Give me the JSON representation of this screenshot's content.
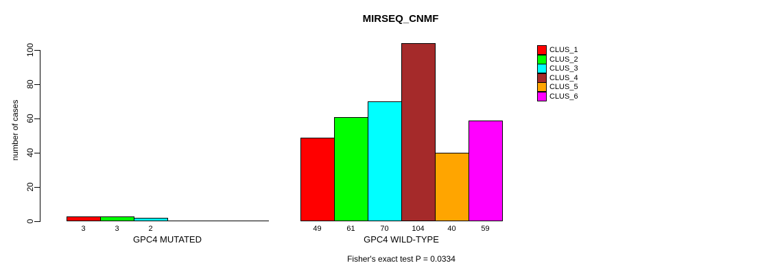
{
  "title": "MIRSEQ_CNMF",
  "footer": "Fisher's exact test P = 0.0334",
  "y_axis": {
    "label": "number of cases"
  },
  "legend": {
    "items": [
      {
        "label": "CLUS_1",
        "color": "#ff0000"
      },
      {
        "label": "CLUS_2",
        "color": "#00ff00"
      },
      {
        "label": "CLUS_3",
        "color": "#00ffff"
      },
      {
        "label": "CLUS_4",
        "color": "#a52a2a"
      },
      {
        "label": "CLUS_5",
        "color": "#ffa500"
      },
      {
        "label": "CLUS_6",
        "color": "#ff00ff"
      }
    ]
  },
  "chart_data": {
    "type": "bar",
    "title": "MIRSEQ_CNMF",
    "ylabel": "number of cases",
    "ylim": [
      0,
      104
    ],
    "yticks": [
      0,
      20,
      40,
      60,
      80,
      100
    ],
    "grid": false,
    "legend_position": "right",
    "series_names": [
      "CLUS_1",
      "CLUS_2",
      "CLUS_3",
      "CLUS_4",
      "CLUS_5",
      "CLUS_6"
    ],
    "series_colors": [
      "#ff0000",
      "#00ff00",
      "#00ffff",
      "#a52a2a",
      "#ffa500",
      "#ff00ff"
    ],
    "groups": [
      {
        "label": "GPC4 MUTATED",
        "values": [
          3,
          3,
          2,
          0,
          0,
          0
        ],
        "value_labels": [
          "3",
          "3",
          "2",
          "",
          "",
          ""
        ]
      },
      {
        "label": "GPC4 WILD-TYPE",
        "values": [
          49,
          61,
          70,
          104,
          40,
          59
        ],
        "value_labels": [
          "49",
          "61",
          "70",
          "104",
          "40",
          "59"
        ]
      }
    ],
    "annotation": "Fisher's exact test P = 0.0334"
  }
}
